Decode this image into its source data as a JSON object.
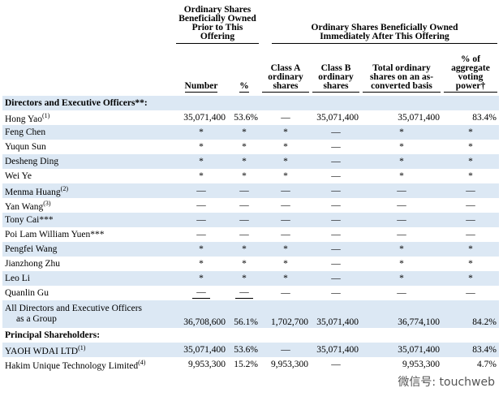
{
  "table": {
    "group_headers": [
      "Ordinary Shares Beneficially Owned Prior to This Offering",
      "Ordinary Shares Beneficially Owned Immediately After This Offering"
    ],
    "columns": [
      "Number",
      "%",
      "Class A ordinary shares",
      "Class B ordinary shares",
      "Total ordinary shares on an as-converted basis",
      "% of aggregate voting power†"
    ],
    "sections": [
      {
        "title": "Directors and Executive Officers**:",
        "rows": [
          {
            "name": "Hong Yao",
            "note": "(1)",
            "cells": [
              "35,071,400",
              "53.6%",
              "—",
              "35,071,400",
              "35,071,400",
              "83.4%"
            ]
          },
          {
            "name": "Feng Chen",
            "cells": [
              "*",
              "*",
              "*",
              "—",
              "*",
              "*"
            ]
          },
          {
            "name": "Yuqun Sun",
            "cells": [
              "*",
              "*",
              "*",
              "—",
              "*",
              "*"
            ]
          },
          {
            "name": "Desheng Ding",
            "cells": [
              "*",
              "*",
              "*",
              "—",
              "*",
              "*"
            ]
          },
          {
            "name": "Wei Ye",
            "cells": [
              "*",
              "*",
              "*",
              "—",
              "*",
              "*"
            ]
          },
          {
            "name": "Menma Huang",
            "note": "(2)",
            "cells": [
              "—",
              "—",
              "—",
              "—",
              "—",
              "—"
            ]
          },
          {
            "name": "Yan Wang",
            "note": "(3)",
            "cells": [
              "—",
              "—",
              "—",
              "—",
              "—",
              "—"
            ]
          },
          {
            "name": "Tony Cai***",
            "cells": [
              "—",
              "—",
              "—",
              "—",
              "—",
              "—"
            ]
          },
          {
            "name": "Poi Lam William Yuen***",
            "cells": [
              "—",
              "—",
              "—",
              "—",
              "—",
              "—"
            ]
          },
          {
            "name": "Pengfei Wang",
            "cells": [
              "*",
              "*",
              "*",
              "—",
              "*",
              "*"
            ]
          },
          {
            "name": "Jianzhong Zhu",
            "cells": [
              "*",
              "*",
              "*",
              "—",
              "*",
              "*"
            ]
          },
          {
            "name": "Leo Li",
            "cells": [
              "*",
              "*",
              "*",
              "—",
              "*",
              "*"
            ]
          },
          {
            "name": "Quanlin Gu",
            "cells": [
              "—",
              "—",
              "—",
              "—",
              "—",
              "—"
            ]
          },
          {
            "name": "All Directors and Executive Officers",
            "name_cont": "as a Group",
            "cells": [
              "36,708,600",
              "56.1%",
              "1,702,700",
              "35,071,400",
              "36,774,100",
              "84.2%"
            ]
          }
        ]
      },
      {
        "title": "Principal Shareholders:",
        "rows": [
          {
            "name": "YAOH WDAI LTD",
            "note": "(1)",
            "cells": [
              "35,071,400",
              "53.6%",
              "—",
              "35,071,400",
              "35,071,400",
              "83.4%"
            ]
          },
          {
            "name": "Hakim Unique Technology Limited",
            "note": "(4)",
            "cells": [
              "9,953,300",
              "15.2%",
              "9,953,300",
              "—",
              "9,953,300",
              "4.7%"
            ]
          }
        ]
      }
    ]
  },
  "watermark": "微信号: touchweb"
}
